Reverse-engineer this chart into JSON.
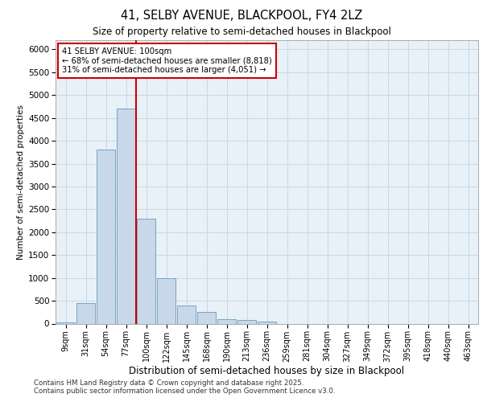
{
  "title1": "41, SELBY AVENUE, BLACKPOOL, FY4 2LZ",
  "title2": "Size of property relative to semi-detached houses in Blackpool",
  "xlabel": "Distribution of semi-detached houses by size in Blackpool",
  "ylabel": "Number of semi-detached properties",
  "categories": [
    "9sqm",
    "31sqm",
    "54sqm",
    "77sqm",
    "100sqm",
    "122sqm",
    "145sqm",
    "168sqm",
    "190sqm",
    "213sqm",
    "236sqm",
    "259sqm",
    "281sqm",
    "304sqm",
    "327sqm",
    "349sqm",
    "372sqm",
    "395sqm",
    "418sqm",
    "440sqm",
    "463sqm"
  ],
  "values": [
    30,
    450,
    3800,
    4700,
    2300,
    1000,
    400,
    250,
    100,
    80,
    50,
    0,
    0,
    0,
    0,
    0,
    0,
    0,
    0,
    0,
    0
  ],
  "bar_color": "#c8d8ea",
  "bar_edge_color": "#6a9ab8",
  "vline_x_index": 4,
  "vline_color": "#cc0000",
  "annotation_title": "41 SELBY AVENUE: 100sqm",
  "annotation_line1": "← 68% of semi-detached houses are smaller (8,818)",
  "annotation_line2": "31% of semi-detached houses are larger (4,051) →",
  "annotation_box_color": "#ffffff",
  "annotation_box_edge": "#cc0000",
  "ylim": [
    0,
    6200
  ],
  "yticks": [
    0,
    500,
    1000,
    1500,
    2000,
    2500,
    3000,
    3500,
    4000,
    4500,
    5000,
    5500,
    6000
  ],
  "grid_color": "#c8d8e8",
  "bg_color": "#e8f0f8",
  "footer1": "Contains HM Land Registry data © Crown copyright and database right 2025.",
  "footer2": "Contains public sector information licensed under the Open Government Licence v3.0."
}
